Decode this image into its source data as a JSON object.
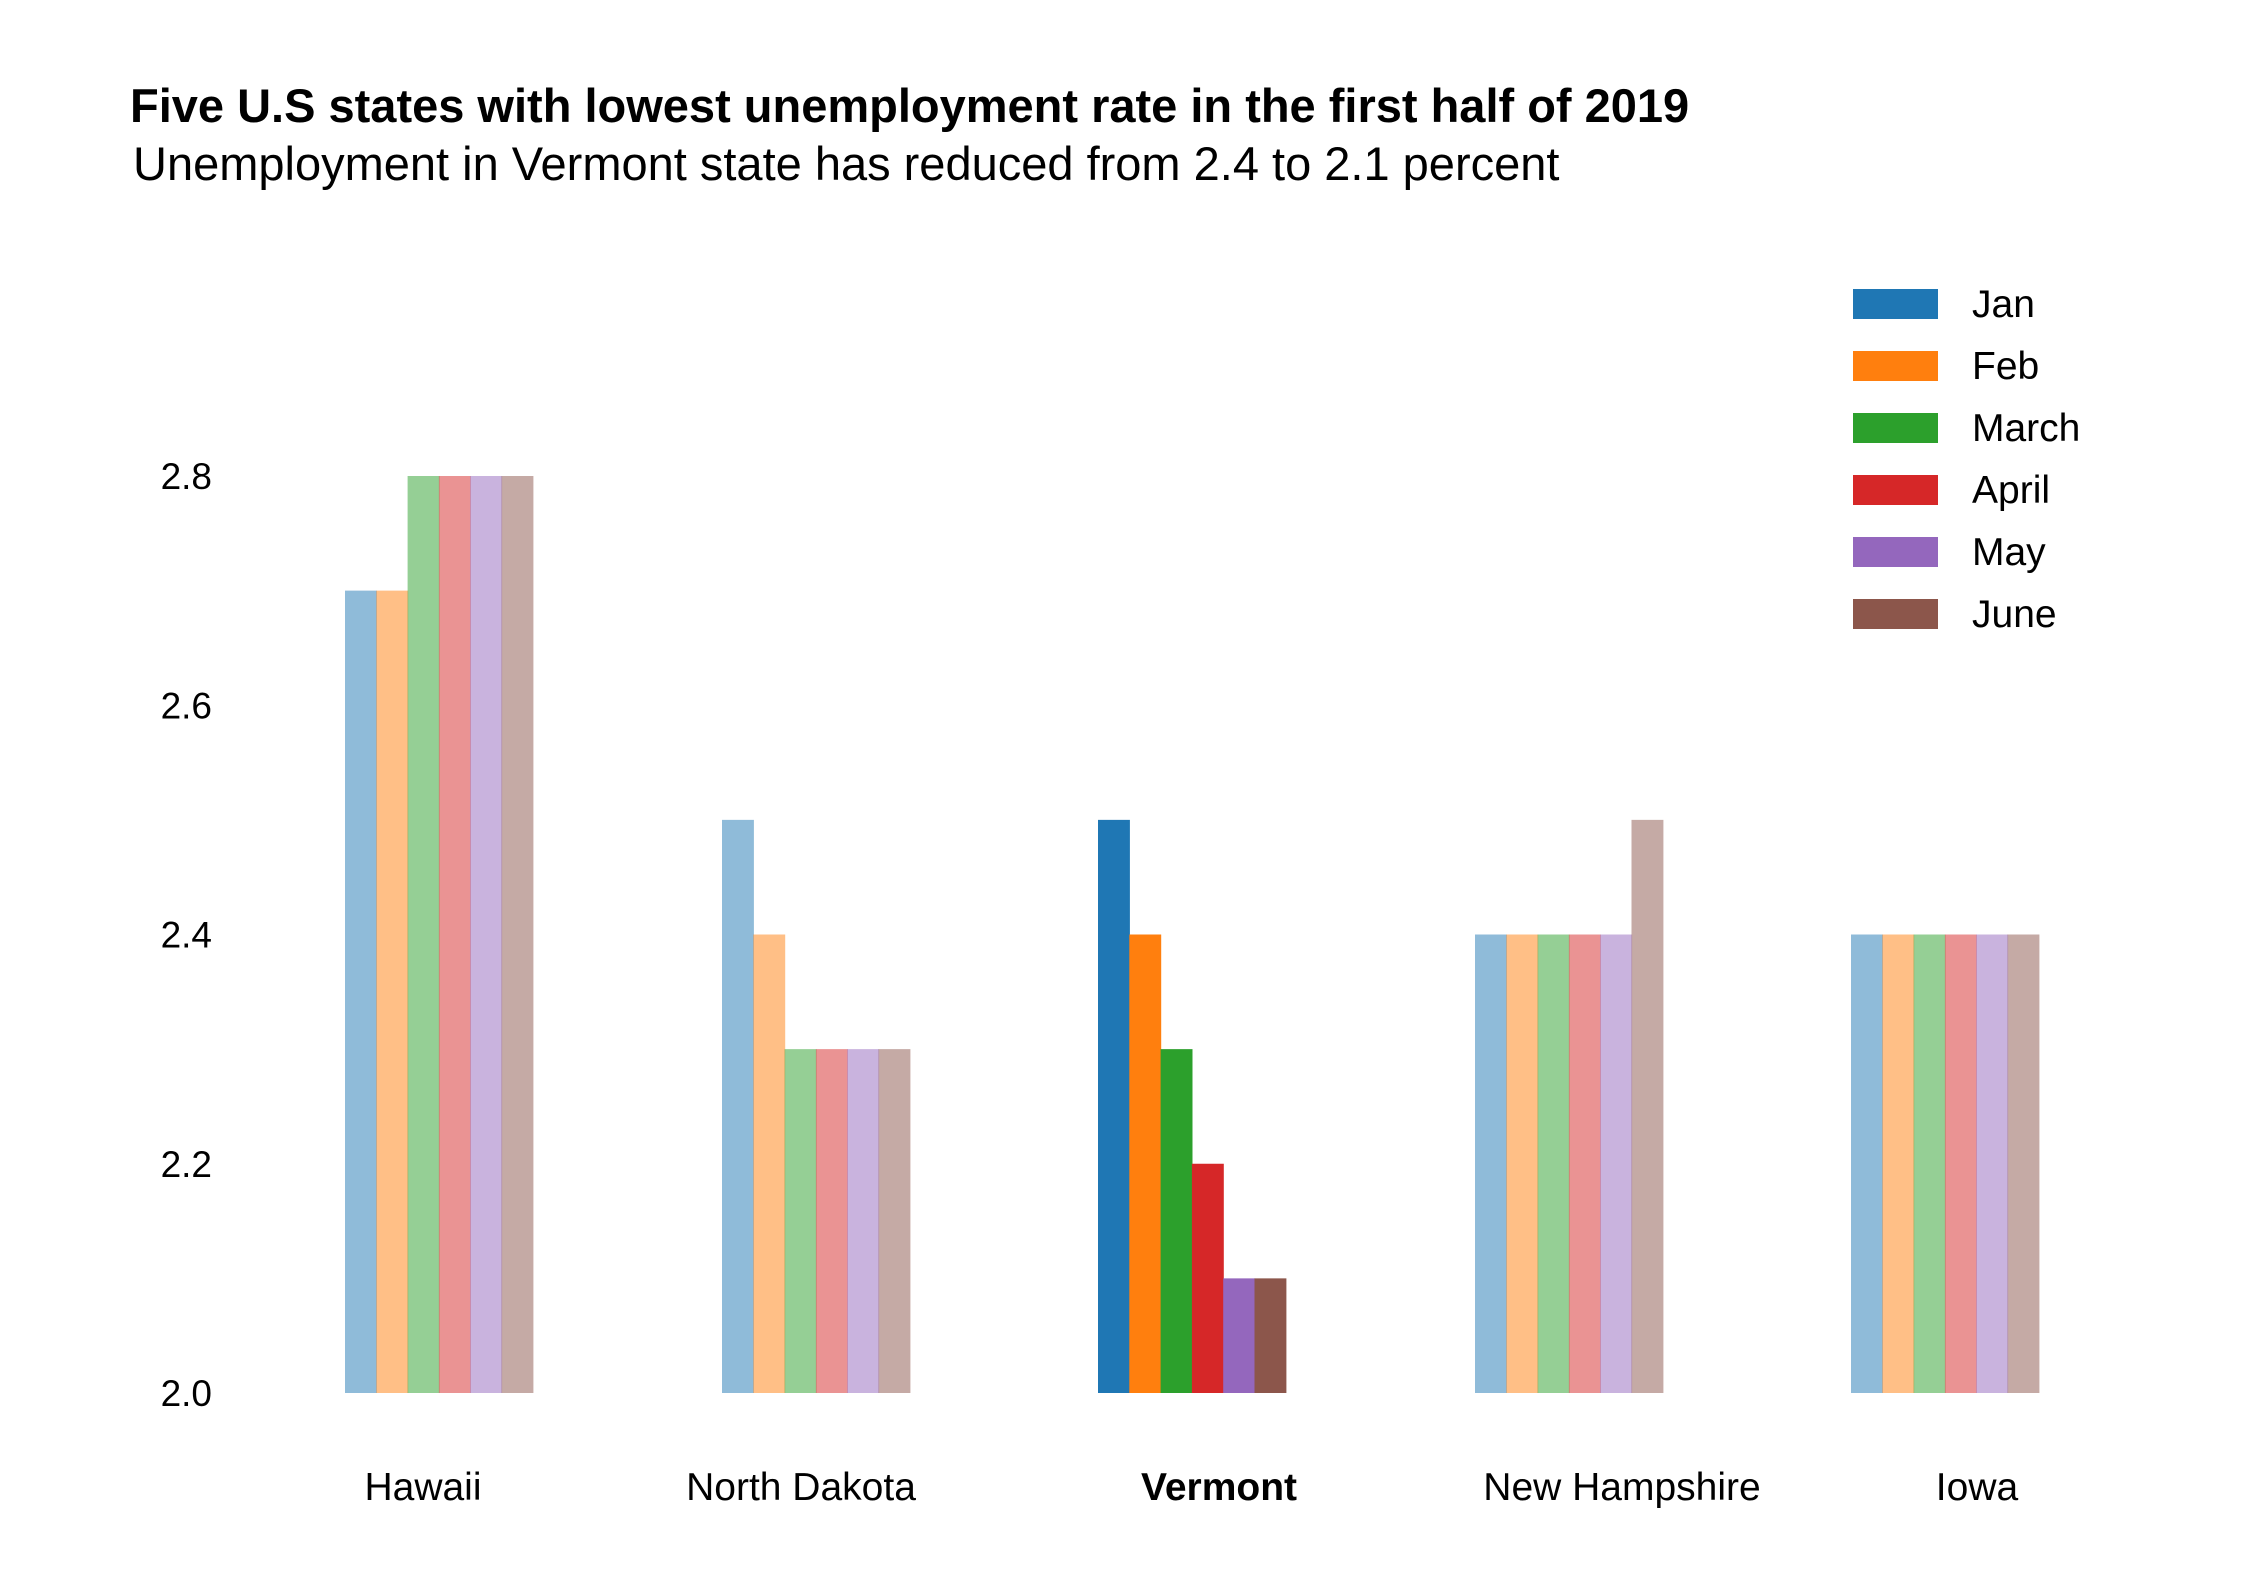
{
  "chart_data": {
    "type": "bar",
    "title": "Five U.S states with lowest unemployment rate in the first half of 2019",
    "subtitle": "Unemployment in Vermont state has reduced from 2.4 to 2.1 percent",
    "xlabel": "",
    "ylabel": "",
    "ylim": [
      2.0,
      2.8
    ],
    "yticks": [
      "2.0",
      "2.2",
      "2.4",
      "2.6",
      "2.8"
    ],
    "grid": false,
    "legend_position": "top-right",
    "highlight_category": "Vermont",
    "categories": [
      "Hawaii",
      "North Dakota",
      "Vermont",
      "New Hampshire",
      "Iowa"
    ],
    "series": [
      {
        "name": "Jan",
        "color": "#1f77b4",
        "values": [
          2.7,
          2.5,
          2.5,
          2.4,
          2.4
        ]
      },
      {
        "name": "Feb",
        "color": "#ff7f0e",
        "values": [
          2.7,
          2.4,
          2.4,
          2.4,
          2.4
        ]
      },
      {
        "name": "March",
        "color": "#2ca02c",
        "values": [
          2.8,
          2.3,
          2.3,
          2.4,
          2.4
        ]
      },
      {
        "name": "April",
        "color": "#d62728",
        "values": [
          2.8,
          2.3,
          2.2,
          2.4,
          2.4
        ]
      },
      {
        "name": "May",
        "color": "#9467bd",
        "values": [
          2.8,
          2.3,
          2.1,
          2.4,
          2.4
        ]
      },
      {
        "name": "June",
        "color": "#8c564b",
        "values": [
          2.8,
          2.3,
          2.1,
          2.5,
          2.4
        ]
      }
    ]
  }
}
